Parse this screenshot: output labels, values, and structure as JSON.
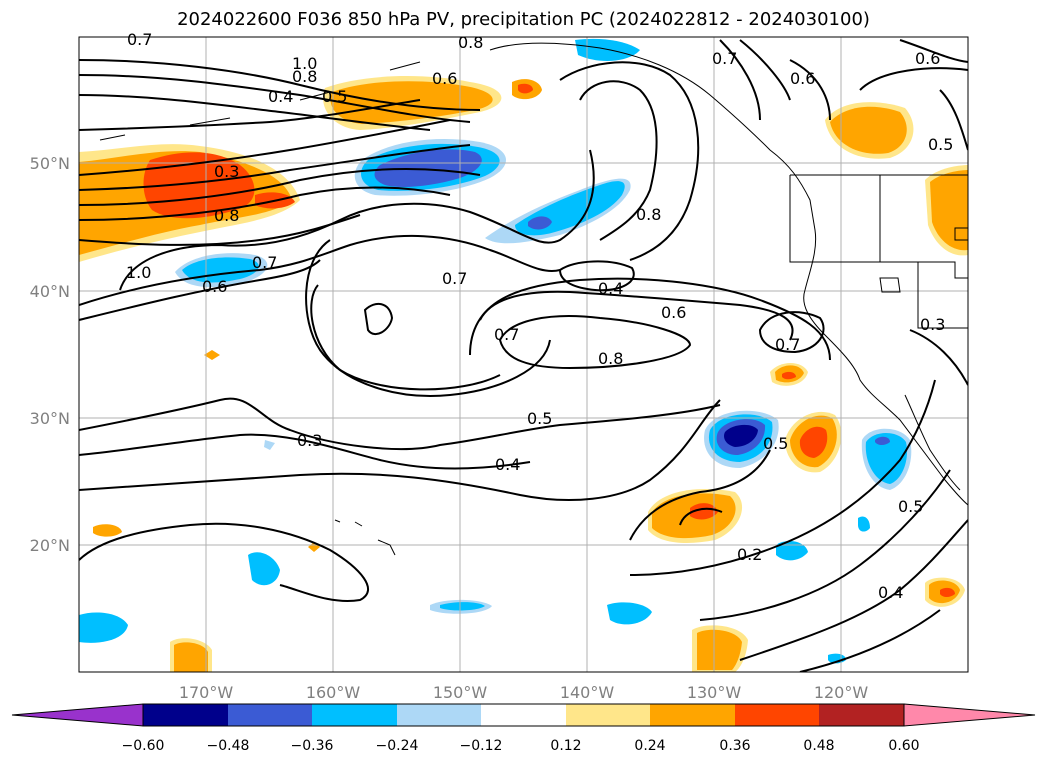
{
  "title": "2024022600 F036 850 hPa PV, precipitation PC (2024022812 - 2024030100)",
  "longitude_labels": [
    "170°W",
    "160°W",
    "150°W",
    "140°W",
    "130°W",
    "120°W"
  ],
  "latitude_labels": [
    "50°N",
    "40°N",
    "30°N",
    "20°N"
  ],
  "contour_labels": [
    "0.7",
    "1.0",
    "0.8",
    "0.8",
    "0.6",
    "0.7",
    "0.6",
    "0.4",
    "0.5",
    "0.6",
    "0.3",
    "0.8",
    "0.5",
    "0.8",
    "1.0",
    "0.7",
    "0.6",
    "0.7",
    "0.4",
    "0.6",
    "0.7",
    "0.8",
    "0.7",
    "0.3",
    "0.5",
    "0.3",
    "0.4",
    "0.5",
    "0.2",
    "0.5",
    "0.4"
  ],
  "colorbar": {
    "ticks": [
      "−0.60",
      "−0.48",
      "−0.36",
      "−0.24",
      "−0.12",
      "0.12",
      "0.24",
      "0.36",
      "0.48",
      "0.60"
    ],
    "colors": [
      "#9932cc",
      "#00008b",
      "#3b5bd4",
      "#00bfff",
      "#add8f6",
      "#ffffff",
      "#ffe68a",
      "#ffa500",
      "#ff4500",
      "#b22222",
      "#ff88aa"
    ]
  },
  "fill_colors": {
    "neg4": "#00008b",
    "neg3": "#3b5bd4",
    "neg2": "#00bfff",
    "neg1": "#add8f6",
    "pos1": "#ffe68a",
    "pos2": "#ffa500",
    "pos3": "#ff4500",
    "pos4": "#b22222"
  }
}
